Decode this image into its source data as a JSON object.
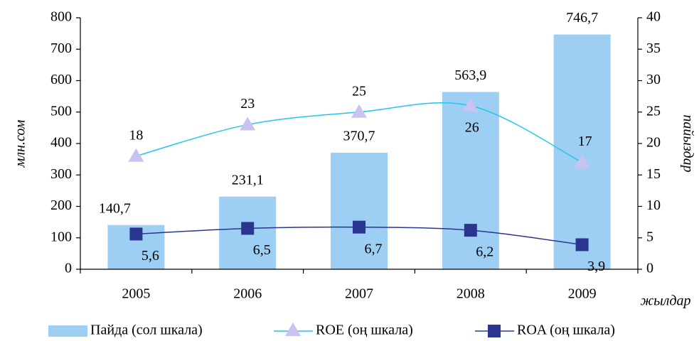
{
  "chart_data": {
    "type": "bar",
    "categories": [
      "2005",
      "2006",
      "2007",
      "2008",
      "2009"
    ],
    "x_label": "жылдар",
    "y_label": "млн.сом",
    "y2_label": "пайыздар",
    "ylim": [
      0,
      800
    ],
    "yticks": [
      0,
      100,
      200,
      300,
      400,
      500,
      600,
      700,
      800
    ],
    "y2lim": [
      0,
      40
    ],
    "y2ticks": [
      0,
      5,
      10,
      15,
      20,
      25,
      30,
      35,
      40
    ],
    "grid": false,
    "series": [
      {
        "name": "Пайда (сол шкала)",
        "type": "bar",
        "color": "#9dcff5",
        "values": [
          140.7,
          231.1,
          370.7,
          563.9,
          746.7
        ],
        "value_labels": [
          "140,7",
          "231,1",
          "370,7",
          "563,9",
          "746,7"
        ]
      },
      {
        "name": "ROE (оң шкала)",
        "type": "line",
        "axis": "y2",
        "color": "#1ec8e8",
        "marker": "triangle",
        "marker_color": "#c8c3f0",
        "values": [
          18,
          23,
          25,
          26,
          17
        ]
      },
      {
        "name": "ROA (оң шкала)",
        "type": "line",
        "axis": "y2",
        "color": "#2a3590",
        "marker": "square",
        "marker_color": "#2a3590",
        "values": [
          5.6,
          6.5,
          6.7,
          6.2,
          3.9
        ],
        "value_labels": [
          "5,6",
          "6,5",
          "6,7",
          "6,2",
          "3,9"
        ]
      }
    ]
  }
}
